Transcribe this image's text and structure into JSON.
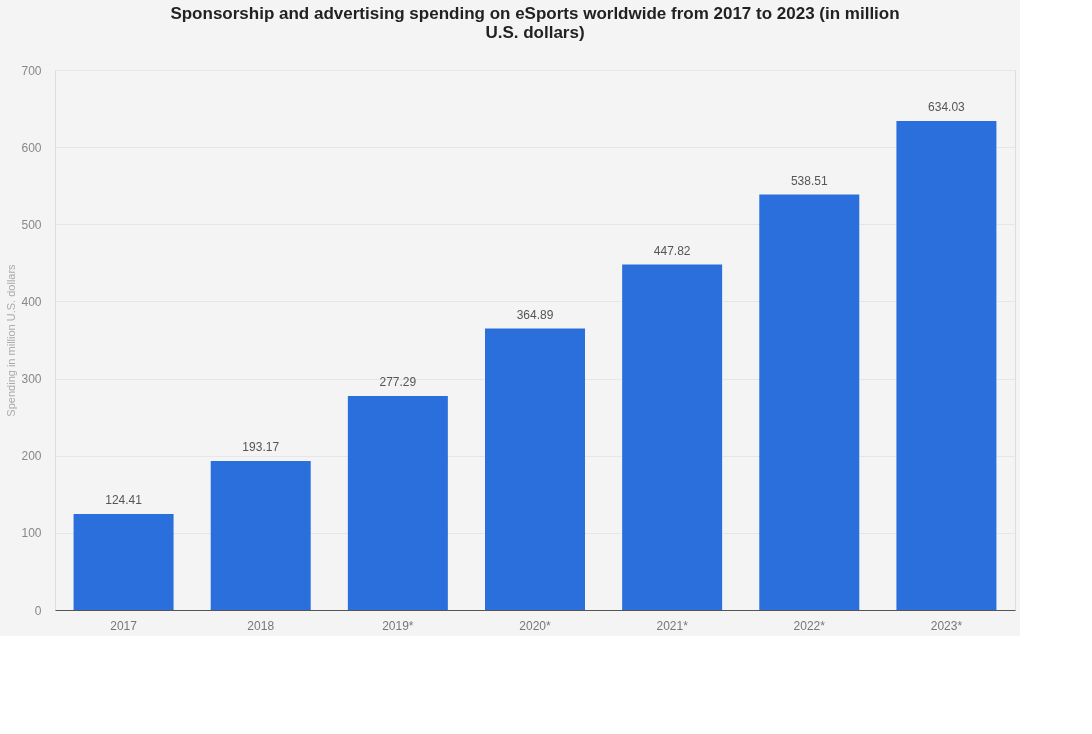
{
  "chart_data": {
    "type": "bar",
    "title": "Sponsorship and advertising spending on eSports worldwide from 2017 to 2023 (in million U.S. dollars)",
    "ylabel": "Spending in million U.S. dollars",
    "categories": [
      "2017",
      "2018",
      "2019*",
      "2020*",
      "2021*",
      "2022*",
      "2023*"
    ],
    "values": [
      124.41,
      193.17,
      277.29,
      364.89,
      447.82,
      538.51,
      634.03
    ],
    "color": "#2a6fdb",
    "ylim": [
      0,
      700
    ],
    "yticks": [
      0,
      100,
      200,
      300,
      400,
      500,
      600,
      700
    ],
    "grid": "y",
    "data_labels": true
  }
}
